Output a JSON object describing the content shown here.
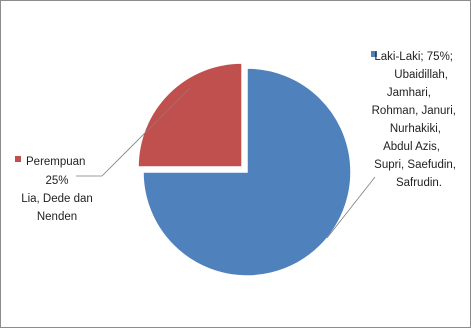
{
  "chart_data": {
    "type": "pie",
    "title": "",
    "slices": [
      {
        "name": "Laki-Laki",
        "value": 75,
        "color": "#4f81bd",
        "label_lines": [
          "Laki-Laki; 75%;",
          "Ubaidillah,",
          "Jamhari,",
          "Rohman, Januri,",
          "Nurhakiki,",
          "Abdul Azis,",
          "Supri, Saefudin,",
          "Safrudin."
        ]
      },
      {
        "name": "Perempuan",
        "value": 25,
        "color": "#c0504d",
        "label_lines": [
          "Perempuan",
          "25%",
          "Lia, Dede dan",
          "Nenden"
        ]
      }
    ],
    "legend_marker_shape": "square",
    "exploded_slice": "Perempuan"
  }
}
